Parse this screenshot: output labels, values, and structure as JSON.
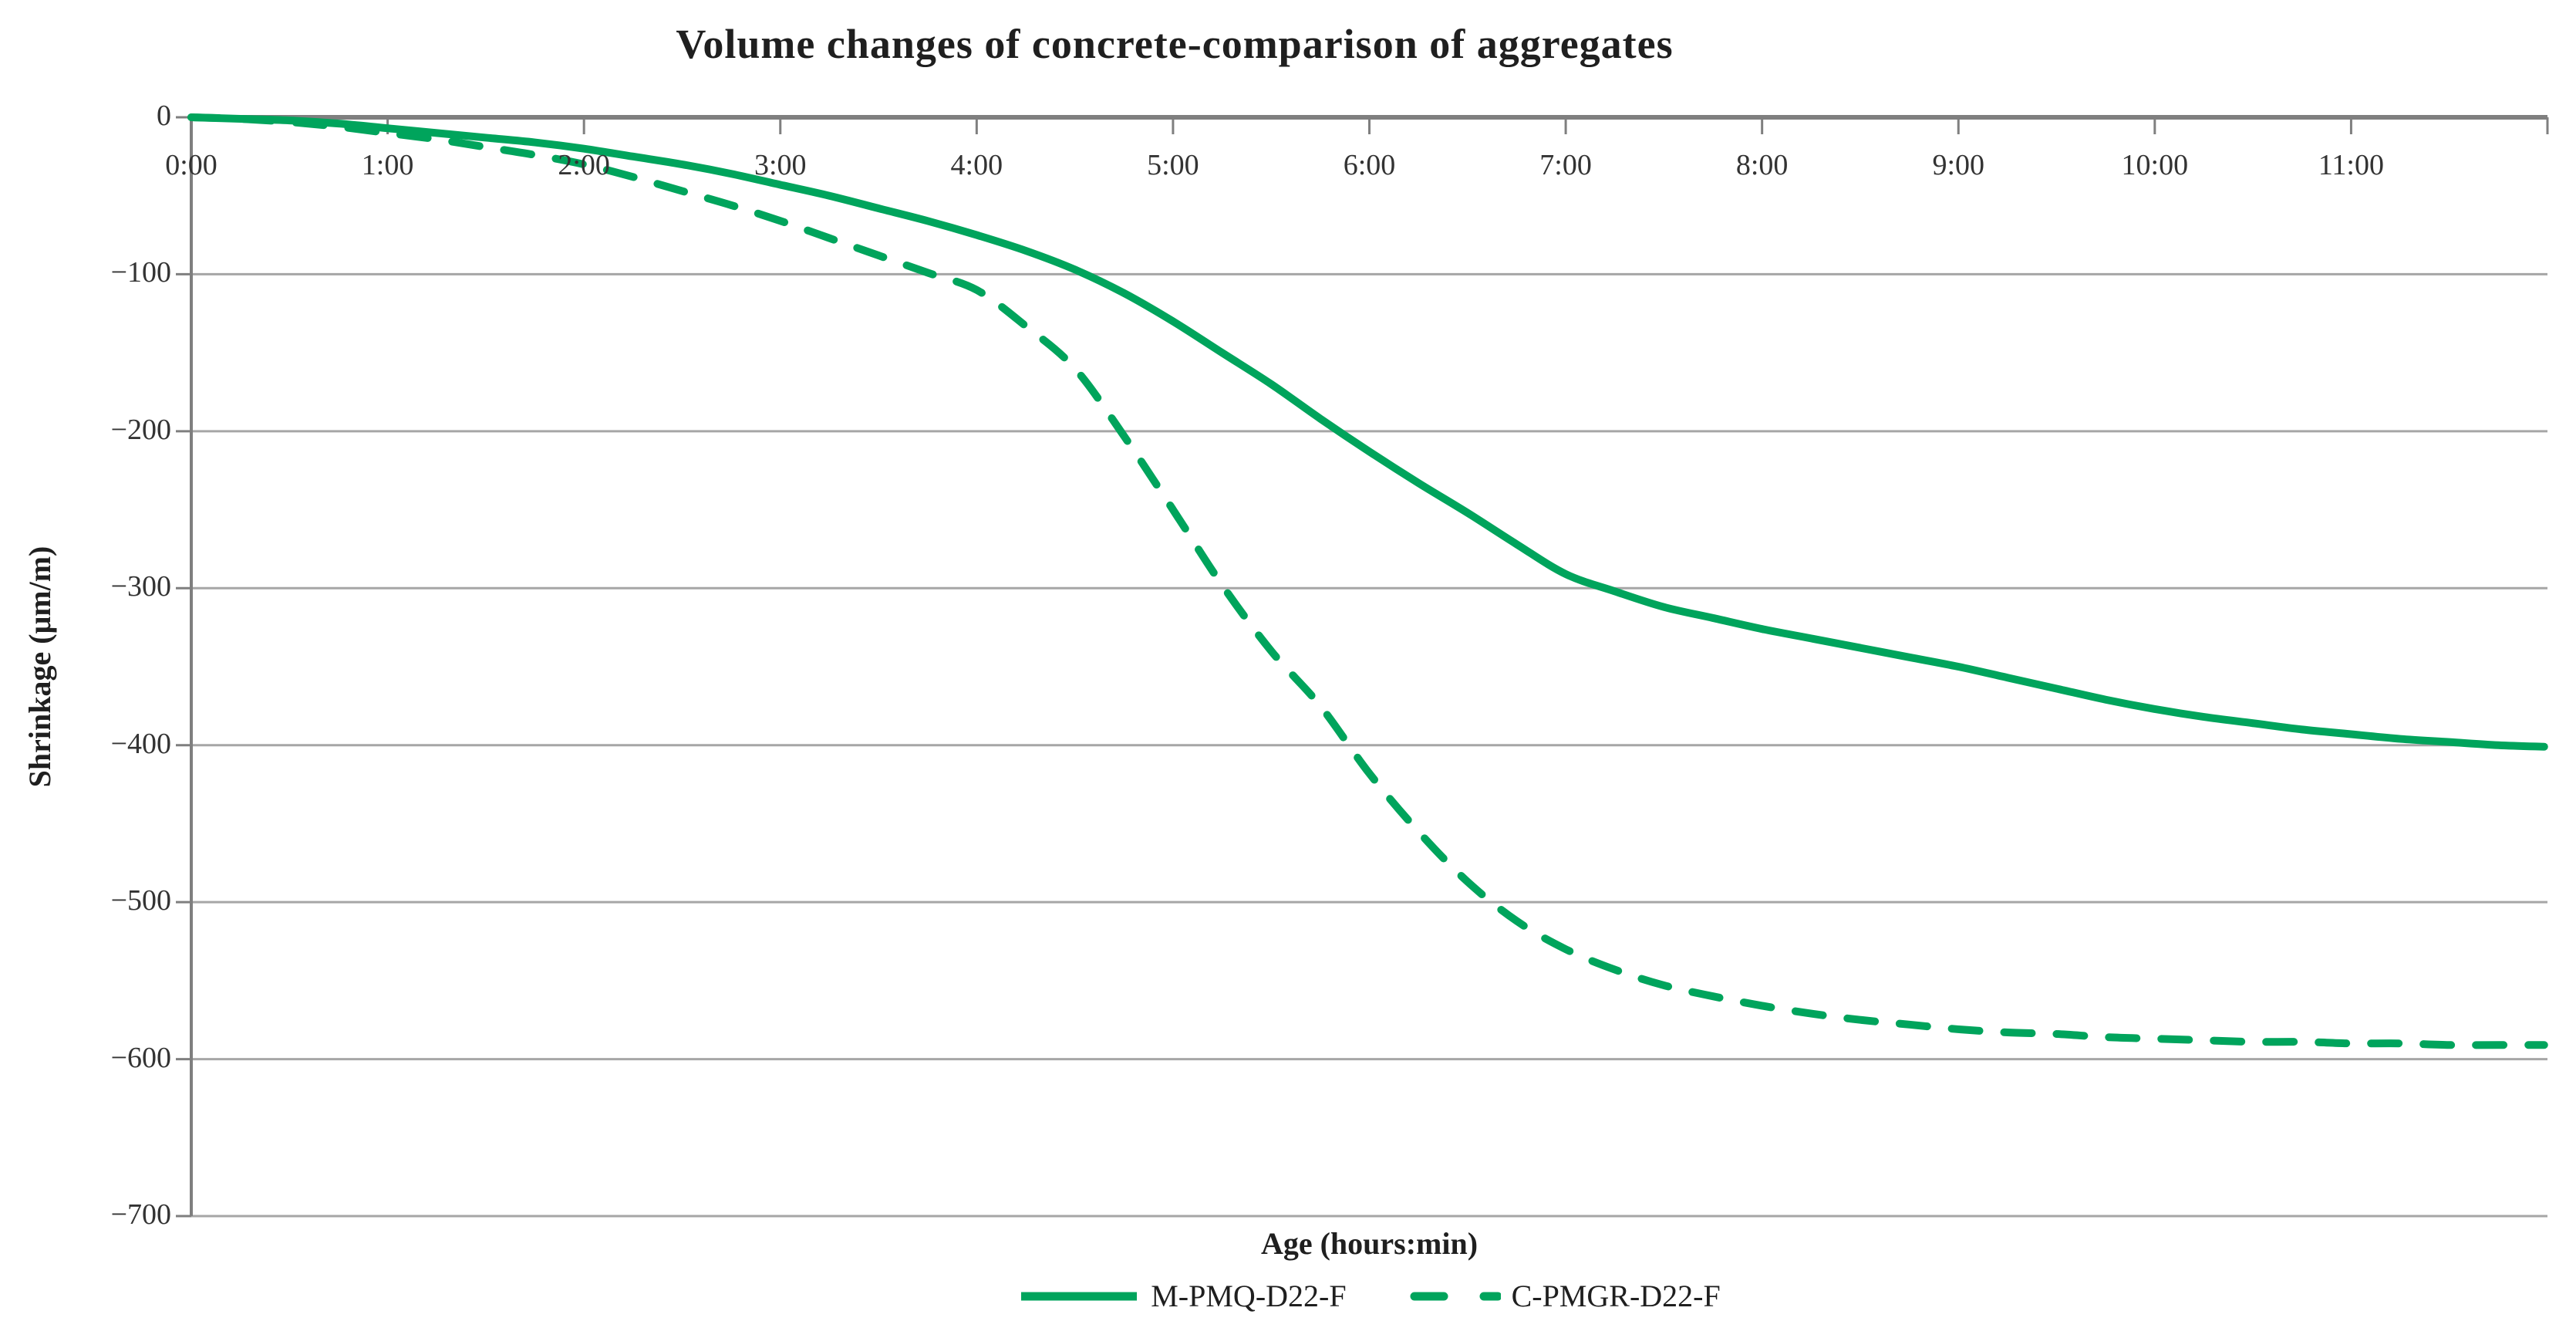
{
  "title": "Volume changes of concrete-comparison of aggregates",
  "chart_data": {
    "type": "line",
    "title": "Volume changes of concrete-comparison of aggregates",
    "xlabel": "Age (hours:min)",
    "ylabel": "Shrinkage (μm/m)",
    "x_unit": "minutes",
    "xlim_minutes": [
      0,
      720
    ],
    "ylim": [
      -700,
      0
    ],
    "grid": true,
    "legend_position": "bottom",
    "x_ticks": [
      {
        "minutes": 0,
        "label": "0:00"
      },
      {
        "minutes": 60,
        "label": "1:00"
      },
      {
        "minutes": 120,
        "label": "2:00"
      },
      {
        "minutes": 180,
        "label": "3:00"
      },
      {
        "minutes": 240,
        "label": "4:00"
      },
      {
        "minutes": 300,
        "label": "5:00"
      },
      {
        "minutes": 360,
        "label": "6:00"
      },
      {
        "minutes": 420,
        "label": "7:00"
      },
      {
        "minutes": 480,
        "label": "8:00"
      },
      {
        "minutes": 540,
        "label": "9:00"
      },
      {
        "minutes": 600,
        "label": "10:00"
      },
      {
        "minutes": 660,
        "label": "11:00"
      }
    ],
    "y_ticks": [
      {
        "value": 0,
        "label": "0"
      },
      {
        "value": -100,
        "label": "−100"
      },
      {
        "value": -200,
        "label": "−200"
      },
      {
        "value": -300,
        "label": "−300"
      },
      {
        "value": -400,
        "label": "−400"
      },
      {
        "value": -500,
        "label": "−500"
      },
      {
        "value": -600,
        "label": "−600"
      },
      {
        "value": -700,
        "label": "−700"
      }
    ],
    "series": [
      {
        "name": "M-PMQ-D22-F",
        "style": "solid",
        "color": "#00A45C",
        "points": [
          [
            0,
            0
          ],
          [
            15,
            -1
          ],
          [
            30,
            -2
          ],
          [
            45,
            -4
          ],
          [
            60,
            -7
          ],
          [
            75,
            -10
          ],
          [
            90,
            -13
          ],
          [
            105,
            -16
          ],
          [
            120,
            -20
          ],
          [
            135,
            -25
          ],
          [
            150,
            -30
          ],
          [
            165,
            -36
          ],
          [
            180,
            -43
          ],
          [
            195,
            -50
          ],
          [
            210,
            -58
          ],
          [
            225,
            -66
          ],
          [
            240,
            -75
          ],
          [
            255,
            -85
          ],
          [
            270,
            -97
          ],
          [
            285,
            -112
          ],
          [
            300,
            -130
          ],
          [
            315,
            -150
          ],
          [
            330,
            -170
          ],
          [
            345,
            -192
          ],
          [
            360,
            -213
          ],
          [
            375,
            -233
          ],
          [
            390,
            -252
          ],
          [
            405,
            -272
          ],
          [
            420,
            -291
          ],
          [
            435,
            -302
          ],
          [
            450,
            -312
          ],
          [
            465,
            -319
          ],
          [
            480,
            -326
          ],
          [
            495,
            -332
          ],
          [
            510,
            -338
          ],
          [
            525,
            -344
          ],
          [
            540,
            -350
          ],
          [
            555,
            -357
          ],
          [
            570,
            -364
          ],
          [
            585,
            -371
          ],
          [
            600,
            -377
          ],
          [
            615,
            -382
          ],
          [
            630,
            -386
          ],
          [
            645,
            -390
          ],
          [
            660,
            -393
          ],
          [
            675,
            -396
          ],
          [
            690,
            -398
          ],
          [
            705,
            -400
          ],
          [
            719,
            -401
          ]
        ]
      },
      {
        "name": "C-PMGR-D22-F",
        "style": "dashed",
        "color": "#00A45C",
        "points": [
          [
            0,
            0
          ],
          [
            15,
            -1
          ],
          [
            30,
            -3
          ],
          [
            45,
            -6
          ],
          [
            60,
            -10
          ],
          [
            75,
            -14
          ],
          [
            90,
            -19
          ],
          [
            105,
            -24
          ],
          [
            120,
            -30
          ],
          [
            135,
            -38
          ],
          [
            150,
            -47
          ],
          [
            165,
            -56
          ],
          [
            180,
            -66
          ],
          [
            195,
            -77
          ],
          [
            210,
            -88
          ],
          [
            225,
            -99
          ],
          [
            240,
            -110
          ],
          [
            255,
            -133
          ],
          [
            270,
            -160
          ],
          [
            285,
            -203
          ],
          [
            300,
            -250
          ],
          [
            315,
            -298
          ],
          [
            330,
            -340
          ],
          [
            345,
            -375
          ],
          [
            360,
            -418
          ],
          [
            375,
            -455
          ],
          [
            390,
            -487
          ],
          [
            405,
            -512
          ],
          [
            420,
            -530
          ],
          [
            435,
            -543
          ],
          [
            450,
            -553
          ],
          [
            465,
            -560
          ],
          [
            480,
            -566
          ],
          [
            495,
            -571
          ],
          [
            510,
            -575
          ],
          [
            525,
            -578
          ],
          [
            540,
            -581
          ],
          [
            555,
            -583
          ],
          [
            570,
            -584
          ],
          [
            585,
            -586
          ],
          [
            600,
            -587
          ],
          [
            615,
            -588
          ],
          [
            630,
            -589
          ],
          [
            645,
            -589
          ],
          [
            660,
            -590
          ],
          [
            675,
            -590
          ],
          [
            690,
            -591
          ],
          [
            705,
            -591
          ],
          [
            719,
            -591
          ]
        ]
      }
    ],
    "colors": {
      "series_green": "#00A45C",
      "gridline": "#A6A6A6",
      "axis_line": "#7F7F7F",
      "text": "#262626",
      "background": "#FFFFFF"
    }
  }
}
